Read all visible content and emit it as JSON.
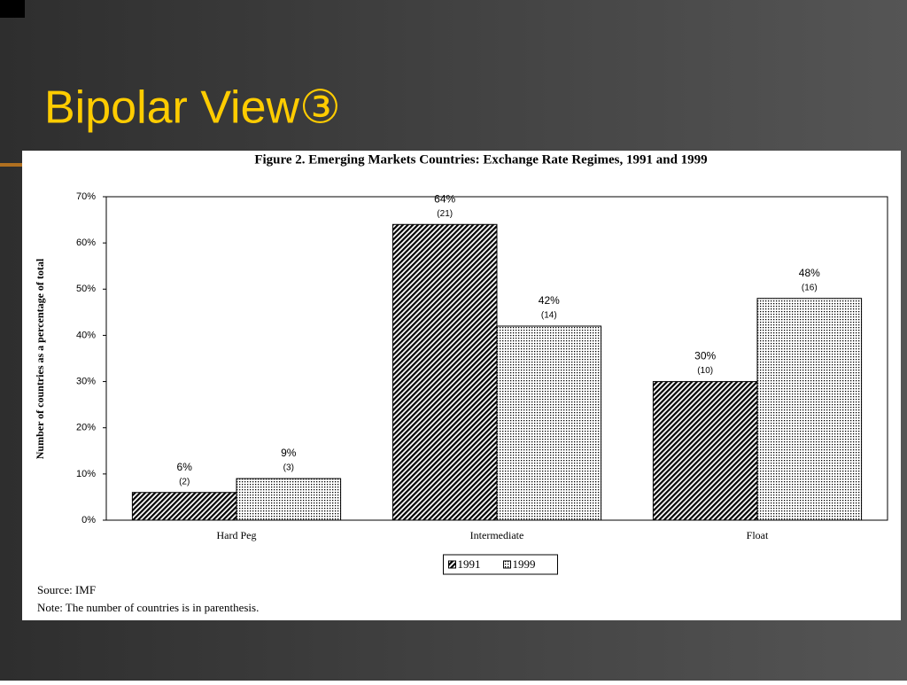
{
  "slide_title": "Bipolar View③",
  "chart_data": {
    "type": "bar",
    "title": "Figure 2. Emerging Markets Countries: Exchange Rate Regimes, 1991 and 1999",
    "y_label": "Number of countries as a percentage of total",
    "categories": [
      "Hard Peg",
      "Intermediate",
      "Float"
    ],
    "series": [
      {
        "name": "1991",
        "color": "#000000",
        "pattern": "hatch",
        "values": [
          6,
          64,
          30
        ],
        "value_labels": [
          "6%",
          "64%",
          "30%"
        ],
        "count_labels": [
          "(2)",
          "(21)",
          "(10)"
        ]
      },
      {
        "name": "1999",
        "color": "#000000",
        "pattern": "dots",
        "values": [
          9,
          42,
          48
        ],
        "value_labels": [
          "9%",
          "42%",
          "48%"
        ],
        "count_labels": [
          "(3)",
          "(14)",
          "(16)"
        ]
      }
    ],
    "ylim": [
      0,
      70
    ],
    "yticks": [
      {
        "value": 0,
        "label": "0%"
      },
      {
        "value": 10,
        "label": "10%"
      },
      {
        "value": 20,
        "label": "20%"
      },
      {
        "value": 30,
        "label": "30%"
      },
      {
        "value": 40,
        "label": "40%"
      },
      {
        "value": 50,
        "label": "50%"
      },
      {
        "value": 60,
        "label": "60%"
      },
      {
        "value": 70,
        "label": "70%"
      }
    ],
    "grid": false,
    "legend": "bottom",
    "source": "Source: IMF",
    "note": "Note: The number of countries is in parenthesis."
  }
}
